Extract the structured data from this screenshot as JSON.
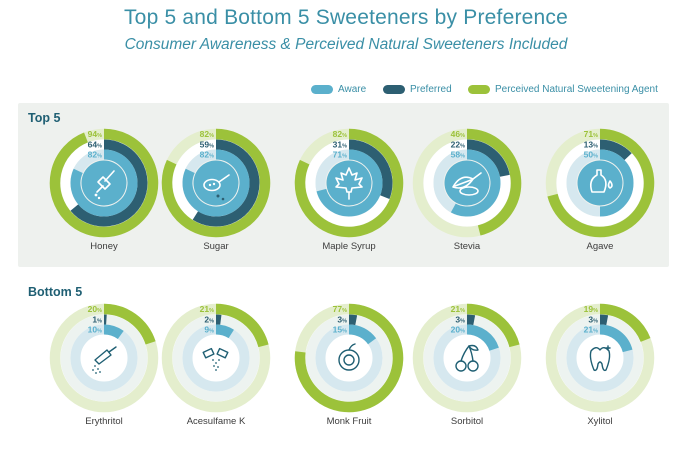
{
  "chart_data": {
    "type": "donut",
    "title": "Top 5 and Bottom 5 Sweeteners by Preference",
    "subtitle": "Consumer Awareness & Perceived Natural Sweeteners Included",
    "legend": [
      "Aware",
      "Preferred",
      "Perceived Natural Sweetening Agent"
    ],
    "legend_position": "top-right",
    "unit": "%",
    "colors": {
      "aware": "#5bb0cc",
      "preferred": "#2d5f72",
      "natural": "#9cc23a",
      "aware_track": "#d6e8ef",
      "preferred_track": "#c5d7dc",
      "natural_track": "#e4eecd"
    },
    "groups": [
      {
        "label": "Top 5",
        "items": [
          {
            "name": "Honey",
            "natural": 94,
            "preferred": 64,
            "aware": 82,
            "icon": "honey-dipper-icon"
          },
          {
            "name": "Sugar",
            "natural": 82,
            "preferred": 59,
            "aware": 82,
            "icon": "sugar-spoon-icon"
          },
          {
            "name": "Maple Syrup",
            "natural": 82,
            "preferred": 31,
            "aware": 71,
            "icon": "maple-leaf-icon"
          },
          {
            "name": "Stevia",
            "natural": 46,
            "preferred": 22,
            "aware": 58,
            "icon": "stevia-leaf-icon"
          },
          {
            "name": "Agave",
            "natural": 71,
            "preferred": 13,
            "aware": 50,
            "icon": "agave-bottle-icon"
          }
        ]
      },
      {
        "label": "Bottom 5",
        "items": [
          {
            "name": "Erythritol",
            "natural": 20,
            "preferred": 1,
            "aware": 10,
            "icon": "erythritol-scoop-icon"
          },
          {
            "name": "Acesulfame K",
            "natural": 21,
            "preferred": 2,
            "aware": 9,
            "icon": "sweetener-packets-icon"
          },
          {
            "name": "Monk Fruit",
            "natural": 77,
            "preferred": 3,
            "aware": 15,
            "icon": "monk-fruit-icon"
          },
          {
            "name": "Sorbitol",
            "natural": 21,
            "preferred": 3,
            "aware": 20,
            "icon": "cherries-icon"
          },
          {
            "name": "Xylitol",
            "natural": 19,
            "preferred": 3,
            "aware": 21,
            "icon": "tooth-icon"
          }
        ]
      }
    ]
  }
}
